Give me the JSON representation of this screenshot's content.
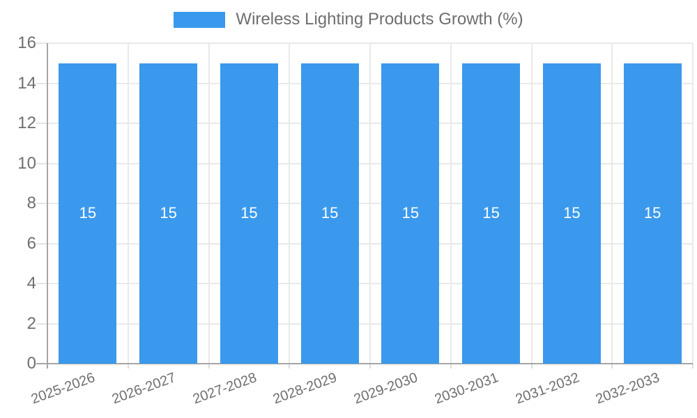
{
  "legend": {
    "label": "Wireless Lighting Products Growth (%)"
  },
  "chart_data": {
    "type": "bar",
    "title": "Wireless Lighting Products Growth (%)",
    "categories": [
      "2025-2026",
      "2026-2027",
      "2027-2028",
      "2028-2029",
      "2029-2030",
      "2030-2031",
      "2031-2032",
      "2032-2033"
    ],
    "series": [
      {
        "name": "Wireless Lighting Products Growth (%)",
        "values": [
          15,
          15,
          15,
          15,
          15,
          15,
          15,
          15
        ]
      }
    ],
    "bar_value_labels": [
      "15",
      "15",
      "15",
      "15",
      "15",
      "15",
      "15",
      "15"
    ],
    "xlabel": "",
    "ylabel": "",
    "ylim": [
      0,
      16
    ],
    "yticks": [
      0,
      2,
      4,
      6,
      8,
      10,
      12,
      14,
      16
    ],
    "grid": true,
    "legend_position": "top-center",
    "colors": {
      "bar": "#3A99EC",
      "bar_label": "#FFFFFF",
      "tick_label": "#6E6E6E",
      "gridline": "#E9E9E9",
      "axis_line": "#A5A5A5",
      "background": "#FFFFFF"
    }
  }
}
